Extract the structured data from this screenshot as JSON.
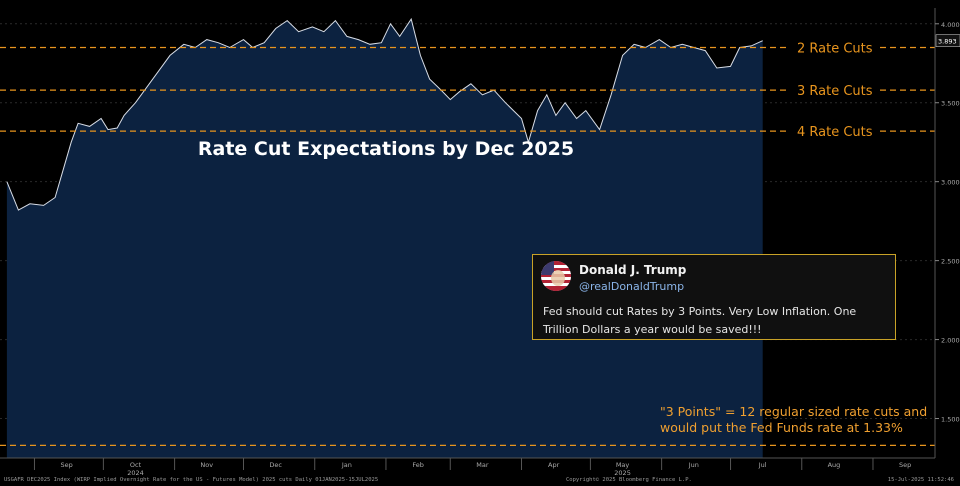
{
  "chart_data": {
    "type": "area",
    "title": "Rate Cut Expectations by Dec 2025",
    "x_ticks": [
      "Sep",
      "Oct",
      "Nov",
      "Dec",
      "Jan",
      "Feb",
      "Mar",
      "Apr",
      "May",
      "Jun",
      "Jul",
      "Aug",
      "Sep"
    ],
    "year_labels": [
      {
        "label": "2024",
        "at": "Oct"
      },
      {
        "label": "2025",
        "at": "May"
      }
    ],
    "ylim": [
      1.25,
      4.1
    ],
    "y_ticks": [
      "4.000",
      "3.500",
      "3.000",
      "2.500",
      "2.000",
      "1.500"
    ],
    "last_value": "3.893",
    "reference_lines": [
      {
        "label": "2 Rate Cuts",
        "value": 3.85
      },
      {
        "label": "3 Rate Cuts",
        "value": 3.58
      },
      {
        "label": "4 Rate Cuts",
        "value": 3.32
      },
      {
        "label": "",
        "value": 1.33
      }
    ],
    "series": [
      {
        "values": [
          [
            "2024-08-20",
            3.0
          ],
          [
            "2024-08-25",
            2.82
          ],
          [
            "2024-08-30",
            2.86
          ],
          [
            "2024-09-05",
            2.85
          ],
          [
            "2024-09-10",
            2.9
          ],
          [
            "2024-09-13",
            3.05
          ],
          [
            "2024-09-17",
            3.25
          ],
          [
            "2024-09-20",
            3.37
          ],
          [
            "2024-09-25",
            3.35
          ],
          [
            "2024-09-30",
            3.4
          ],
          [
            "2024-10-03",
            3.33
          ],
          [
            "2024-10-07",
            3.34
          ],
          [
            "2024-10-10",
            3.42
          ],
          [
            "2024-10-15",
            3.5
          ],
          [
            "2024-10-20",
            3.6
          ],
          [
            "2024-10-25",
            3.7
          ],
          [
            "2024-10-30",
            3.8
          ],
          [
            "2024-11-05",
            3.87
          ],
          [
            "2024-11-10",
            3.85
          ],
          [
            "2024-11-15",
            3.9
          ],
          [
            "2024-11-20",
            3.88
          ],
          [
            "2024-11-25",
            3.85
          ],
          [
            "2024-12-01",
            3.9
          ],
          [
            "2024-12-05",
            3.85
          ],
          [
            "2024-12-10",
            3.88
          ],
          [
            "2024-12-15",
            3.97
          ],
          [
            "2024-12-20",
            4.02
          ],
          [
            "2024-12-25",
            3.95
          ],
          [
            "2024-12-31",
            3.98
          ],
          [
            "2025-01-05",
            3.95
          ],
          [
            "2025-01-10",
            4.02
          ],
          [
            "2025-01-15",
            3.92
          ],
          [
            "2025-01-20",
            3.9
          ],
          [
            "2025-01-25",
            3.87
          ],
          [
            "2025-01-30",
            3.88
          ],
          [
            "2025-02-03",
            4.0
          ],
          [
            "2025-02-07",
            3.92
          ],
          [
            "2025-02-12",
            4.03
          ],
          [
            "2025-02-16",
            3.8
          ],
          [
            "2025-02-20",
            3.65
          ],
          [
            "2025-02-25",
            3.58
          ],
          [
            "2025-03-01",
            3.52
          ],
          [
            "2025-03-05",
            3.57
          ],
          [
            "2025-03-10",
            3.62
          ],
          [
            "2025-03-15",
            3.55
          ],
          [
            "2025-03-20",
            3.58
          ],
          [
            "2025-03-25",
            3.5
          ],
          [
            "2025-04-01",
            3.4
          ],
          [
            "2025-04-04",
            3.25
          ],
          [
            "2025-04-08",
            3.45
          ],
          [
            "2025-04-12",
            3.55
          ],
          [
            "2025-04-16",
            3.42
          ],
          [
            "2025-04-20",
            3.5
          ],
          [
            "2025-04-25",
            3.4
          ],
          [
            "2025-04-29",
            3.45
          ],
          [
            "2025-05-05",
            3.33
          ],
          [
            "2025-05-10",
            3.55
          ],
          [
            "2025-05-15",
            3.8
          ],
          [
            "2025-05-20",
            3.87
          ],
          [
            "2025-05-25",
            3.85
          ],
          [
            "2025-05-31",
            3.9
          ],
          [
            "2025-06-05",
            3.85
          ],
          [
            "2025-06-10",
            3.87
          ],
          [
            "2025-06-15",
            3.85
          ],
          [
            "2025-06-20",
            3.83
          ],
          [
            "2025-06-25",
            3.72
          ],
          [
            "2025-07-01",
            3.73
          ],
          [
            "2025-07-05",
            3.85
          ],
          [
            "2025-07-10",
            3.86
          ],
          [
            "2025-07-15",
            3.893
          ]
        ]
      }
    ]
  },
  "tweet": {
    "name": "Donald J. Trump",
    "handle": "@realDonaldTrump",
    "text": "Fed should cut Rates by 3 Points. Very Low Inflation. One Trillion Dollars a year would be saved!!!"
  },
  "note": "\"3 Points\" = 12 regular sized rate cuts and would put the Fed Funds rate at 1.33%",
  "footer": {
    "left": "USGAFR DEC2025 Index (WIRP Implied Overnight Rate for the US - Futures Model) 2025 cuts  Daily 01JAN2025-15JUL2025",
    "center": "Copyright© 2025 Bloomberg Finance L.P.",
    "right": "15-Jul-2025 11:52:46"
  },
  "colors": {
    "area_fill": "#0c2240",
    "line": "#d8dde6",
    "reference": "#e8951e",
    "accent": "#f0a030"
  }
}
